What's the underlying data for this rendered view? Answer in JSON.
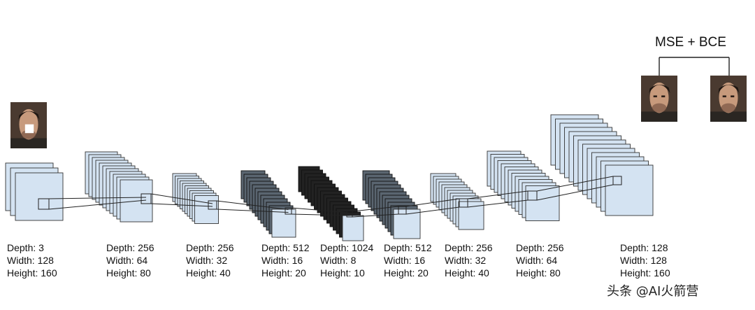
{
  "loss_label": "MSE + BCE",
  "watermark": "头条 @AI火箭营",
  "layers": [
    {
      "depth": "Depth: 3",
      "width": "Width: 128",
      "height": "Height: 160"
    },
    {
      "depth": "Depth: 256",
      "width": "Width: 64",
      "height": "Height: 80"
    },
    {
      "depth": "Depth: 256",
      "width": "Width: 32",
      "height": "Height: 40"
    },
    {
      "depth": "Depth: 512",
      "width": "Width: 16",
      "height": "Height: 20"
    },
    {
      "depth": "Depth: 1024",
      "width": "Width: 8",
      "height": "Height: 10"
    },
    {
      "depth": "Depth: 512",
      "width": "Width: 16",
      "height": "Height: 20"
    },
    {
      "depth": "Depth: 256",
      "width": "Width: 32",
      "height": "Height: 40"
    },
    {
      "depth": "Depth: 256",
      "width": "Width: 64",
      "height": "Height: 80"
    },
    {
      "depth": "Depth: 128",
      "width": "Width: 128",
      "height": "Height: 160"
    }
  ],
  "colors": {
    "map_fill": "#d4e3f2",
    "dark_fill": "#5a6570",
    "darkest_fill": "#222222",
    "stroke": "#333333"
  }
}
